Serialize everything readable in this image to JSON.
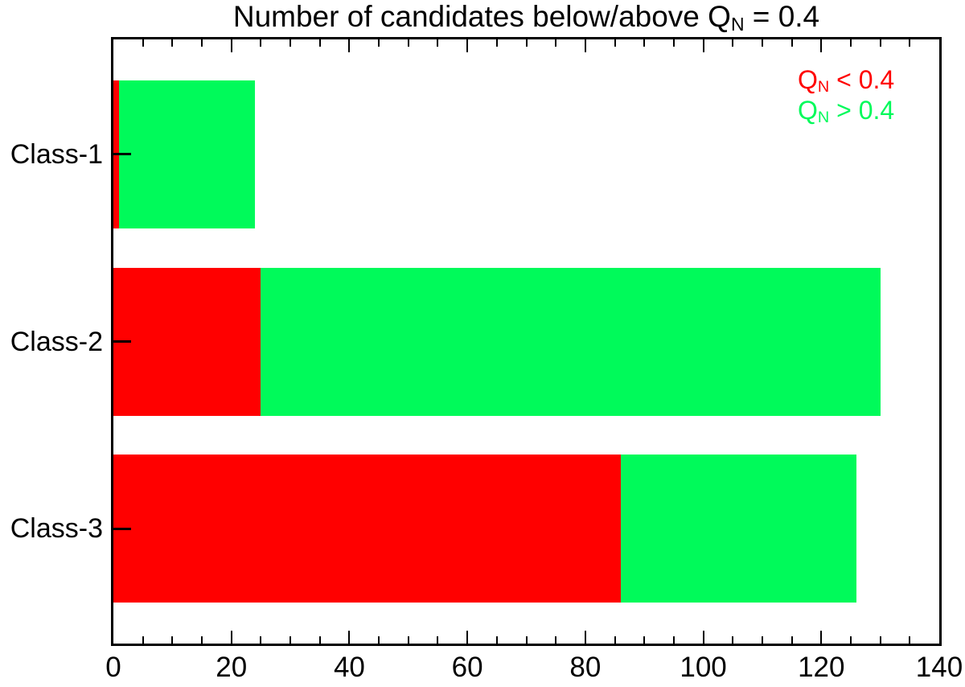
{
  "title": {
    "prefix": "Number of candidates below/above Q",
    "sub": "N",
    "suffix": " = 0.4"
  },
  "legend": {
    "items": [
      {
        "prefix": "Q",
        "sub": "N",
        "suffix": " < 0.4",
        "color": "#ff0000"
      },
      {
        "prefix": "Q",
        "sub": "N",
        "suffix": " > 0.4",
        "color": "#00fa5a"
      }
    ]
  },
  "colors": {
    "below": "#ff0000",
    "above": "#00fa5a",
    "axis": "#000000",
    "background": "#ffffff"
  },
  "chart_data": {
    "type": "bar",
    "orientation": "horizontal",
    "stacked": true,
    "title": "Number of candidates below/above Q_N = 0.4",
    "categories": [
      "Class-1",
      "Class-2",
      "Class-3"
    ],
    "series": [
      {
        "name": "Q_N < 0.4",
        "color": "#ff0000",
        "values": [
          1,
          25,
          86
        ]
      },
      {
        "name": "Q_N > 0.4",
        "color": "#00fa5a",
        "values": [
          23,
          105,
          40
        ]
      }
    ],
    "totals": [
      24,
      130,
      126
    ],
    "xlabel": "",
    "ylabel": "",
    "xlim": [
      0,
      140
    ],
    "x_major_ticks": [
      0,
      20,
      40,
      60,
      80,
      100,
      120,
      140
    ],
    "x_tick_labels": [
      "0",
      "20",
      "40",
      "60",
      "80",
      "100",
      "120",
      "140"
    ],
    "x_minor_tick_step": 5,
    "grid": false,
    "legend_position": "top-right",
    "ticks_direction": "in"
  }
}
